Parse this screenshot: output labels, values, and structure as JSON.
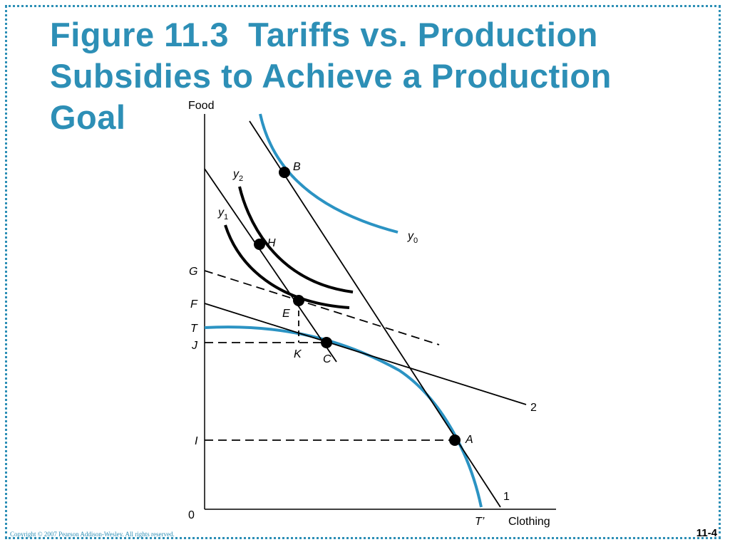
{
  "slide": {
    "title_lines": [
      "Figure 11.3  Tariffs vs. Production",
      "Subsidies to Achieve a Production",
      "Goal"
    ],
    "copyright": "Copyright © 2007 Pearson Addison-Wesley.  All rights reserved.",
    "page_number": "11-4"
  },
  "diagram": {
    "y_axis_label": "Food",
    "x_axis_label": "Clothing",
    "origin_label": "0",
    "axis_tick_labels": [
      "G",
      "F",
      "T",
      "J",
      "I"
    ],
    "points": [
      "B",
      "H",
      "E",
      "K",
      "C",
      "A"
    ],
    "curve_labels": {
      "y0": {
        "base": "y",
        "sub": "0"
      },
      "y1": {
        "base": "y",
        "sub": "1"
      },
      "y2": {
        "base": "y",
        "sub": "2"
      },
      "t_prime": "T’"
    },
    "line_labels": [
      "1",
      "2"
    ],
    "colors": {
      "curve_blue": "#2b93c3",
      "title_blue": "#2d8fb6",
      "ink": "#000000"
    }
  }
}
